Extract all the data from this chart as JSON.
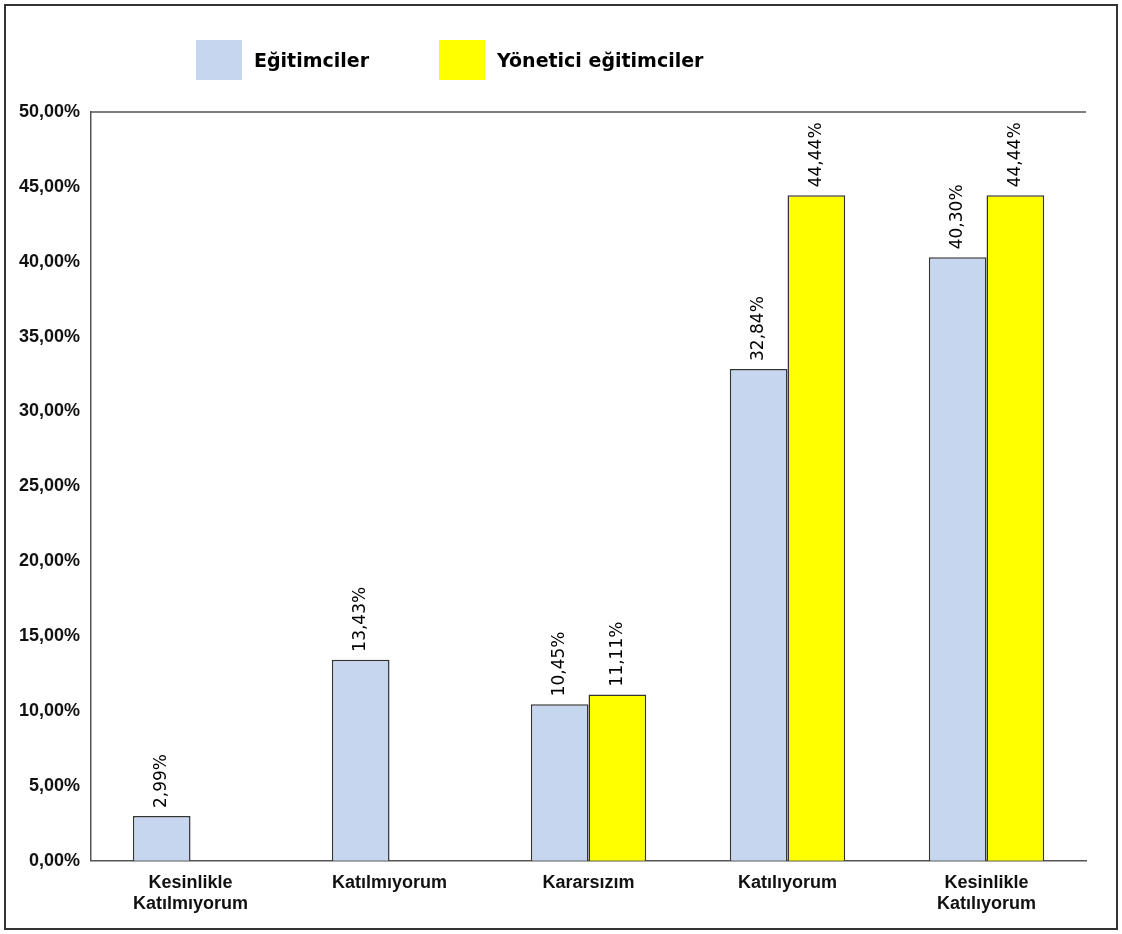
{
  "chart_data": {
    "type": "bar",
    "categories": [
      "Kesinlikle Katılmıyorum",
      "Katılmıyorum",
      "Kararsızım",
      "Katılıyorum",
      "Kesinlikle Katılıyorum"
    ],
    "series": [
      {
        "name": "Eğitimciler",
        "color": "#c6d6ee",
        "values": [
          2.99,
          13.43,
          10.45,
          32.84,
          40.3
        ],
        "value_labels": [
          "2,99%",
          "13,43%",
          "10,45%",
          "32,84%",
          "40,30%"
        ]
      },
      {
        "name": "Yönetici eğitimciler",
        "color": "#ffff00",
        "values": [
          null,
          null,
          11.11,
          44.44,
          44.44
        ],
        "value_labels": [
          null,
          null,
          "11,11%",
          "44,44%",
          "44,44%"
        ]
      }
    ],
    "ylim": [
      0,
      50
    ],
    "yticks": [
      {
        "value": 0,
        "label": "0,00%"
      },
      {
        "value": 5,
        "label": "5,00%"
      },
      {
        "value": 10,
        "label": "10,00%"
      },
      {
        "value": 15,
        "label": "15,00%"
      },
      {
        "value": 20,
        "label": "20,00%"
      },
      {
        "value": 25,
        "label": "25,00%"
      },
      {
        "value": 30,
        "label": "30,00%"
      },
      {
        "value": 35,
        "label": "35,00%"
      },
      {
        "value": 40,
        "label": "40,00%"
      },
      {
        "value": 45,
        "label": "45,00%"
      },
      {
        "value": 50,
        "label": "50,00%"
      }
    ],
    "grid": false,
    "legend": "top left"
  }
}
